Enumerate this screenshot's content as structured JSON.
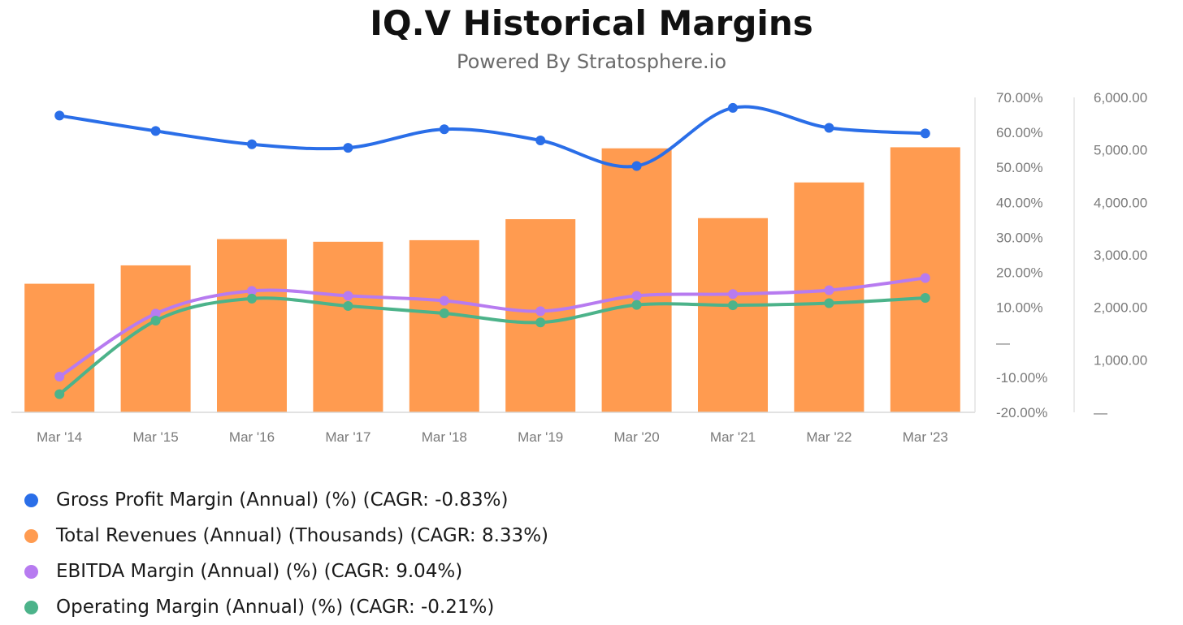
{
  "title": "IQ.V Historical Margins",
  "subtitle": "Powered By Stratosphere.io",
  "chart_data": {
    "type": "bar+line",
    "categories": [
      "Mar '14",
      "Mar '15",
      "Mar '16",
      "Mar '17",
      "Mar '18",
      "Mar '19",
      "Mar '20",
      "Mar '21",
      "Mar '22",
      "Mar '23"
    ],
    "y_left": {
      "ylim": [
        -20,
        70
      ],
      "ticks": [
        "70.00%",
        "60.00%",
        "50.00%",
        "40.00%",
        "30.00%",
        "20.00%",
        "10.00%",
        "—",
        "-10.00%",
        "-20.00%"
      ]
    },
    "y_right": {
      "ylim": [
        0,
        6000
      ],
      "ticks": [
        "6,000.00",
        "5,000.00",
        "4,000.00",
        "3,000.00",
        "2,000.00",
        "1,000.00",
        "—"
      ]
    },
    "bars": {
      "name": "Total Revenues (Annual) (Thousands) (CAGR: 8.33%)",
      "color": "#FF9B50",
      "axis": "right",
      "values": [
        2450,
        2800,
        3300,
        3250,
        3280,
        3680,
        5030,
        3700,
        4380,
        5050
      ]
    },
    "series": [
      {
        "name": "Gross Profit Margin (Annual) (%) (CAGR: -0.83%)",
        "color": "#2A6EE8",
        "axis": "left",
        "values": [
          64.8,
          60.4,
          56.6,
          55.6,
          60.9,
          57.7,
          50.4,
          67.0,
          61.3,
          59.7
        ]
      },
      {
        "name": "EBITDA Margin (Annual) (%) (CAGR: 9.04%)",
        "color": "#B77BF0",
        "axis": "left",
        "values": [
          -9.8,
          8.2,
          14.7,
          13.3,
          11.9,
          8.9,
          13.3,
          13.8,
          14.9,
          18.4
        ]
      },
      {
        "name": "Operating Margin (Annual) (%) (CAGR: -0.21%)",
        "color": "#4CB38A",
        "axis": "left",
        "values": [
          -14.8,
          6.2,
          12.5,
          10.4,
          8.3,
          5.7,
          10.7,
          10.6,
          11.2,
          12.7
        ]
      }
    ],
    "grid": false,
    "legend_position": "bottom-left"
  }
}
